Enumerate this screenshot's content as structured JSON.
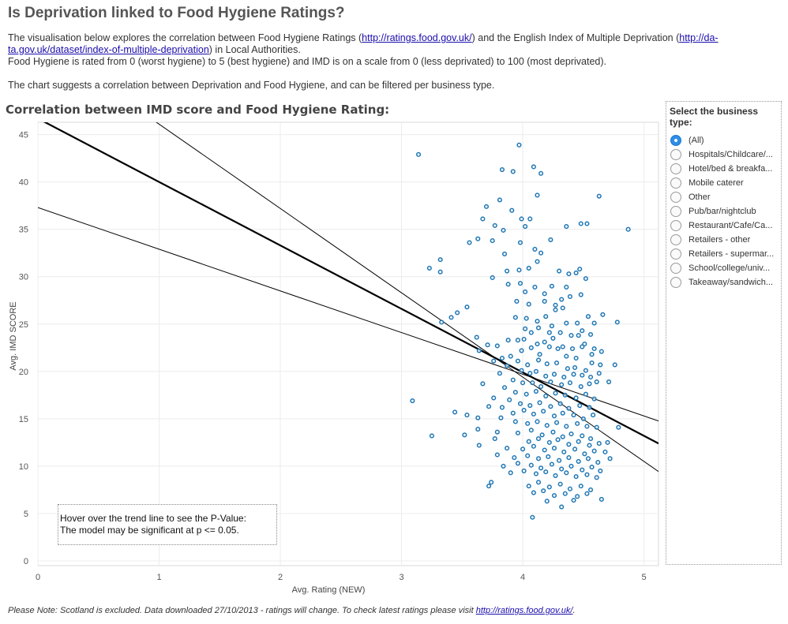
{
  "title": "Is Deprivation linked to Food Hygiene Ratings?",
  "intro": {
    "line1_before": "The visualisation below explores the correlation between Food Hygiene Ratings (",
    "link1": "http://ratings.food.gov.uk/",
    "line1_middle": ") and the English Index of Multiple Deprivation (",
    "link2_part1": "http://da-",
    "link2_part2": "ta.gov.uk/dataset/index-of-multiple-deprivation",
    "line2_after": ") in Local Authorities.",
    "line3": "Food Hygiene is rated from 0 (worst hygiene) to 5 (best hygiene) and IMD is on a scale from 0 (less deprivated) to 100 (most deprivated).",
    "line4": "The chart suggests a correlation between Deprivation and Food Hygiene, and can be filtered per business type."
  },
  "chart_heading": "Correlation between IMD score and Food Hygiene Rating:",
  "filter": {
    "title": "Select the business type:",
    "options": [
      {
        "label": "(All)",
        "selected": true
      },
      {
        "label": "Hospitals/Childcare/...",
        "selected": false
      },
      {
        "label": "Hotel/bed & breakfa...",
        "selected": false
      },
      {
        "label": "Mobile caterer",
        "selected": false
      },
      {
        "label": "Other",
        "selected": false
      },
      {
        "label": "Pub/bar/nightclub",
        "selected": false
      },
      {
        "label": "Restaurant/Cafe/Ca...",
        "selected": false
      },
      {
        "label": "Retailers - other",
        "selected": false
      },
      {
        "label": "Retailers - supermar...",
        "selected": false
      },
      {
        "label": "School/college/univ...",
        "selected": false
      },
      {
        "label": "Takeaway/sandwich...",
        "selected": false
      }
    ]
  },
  "hover_note": {
    "line1": "Hover over the trend line to see the P-Value:",
    "line2": "The model may be significant at p <= 0.05."
  },
  "footnote": {
    "text": "Please Note: Scotland is excluded. Data downloaded 27/10/2013 - ratings will change. To check latest ratings please visit ",
    "link": "http://ratings.food.gov.uk/",
    "end": "."
  },
  "colors": {
    "point": "#1f77b4",
    "trend": "#000000",
    "grid": "#ececec",
    "radio_selected": "#2e8ee8"
  },
  "chart_data": {
    "type": "scatter",
    "xlabel": "Avg. Rating (NEW)",
    "ylabel": "Avg. IMD SCORE",
    "xlim": [
      0,
      5.12
    ],
    "ylim": [
      -0.5,
      46.3
    ],
    "xticks": [
      0,
      1,
      2,
      3,
      4,
      5
    ],
    "yticks": [
      0,
      5,
      10,
      15,
      20,
      25,
      30,
      35,
      40,
      45
    ],
    "grid": true,
    "trend_line": {
      "slope": -6.7,
      "intercept": 46.7
    },
    "confidence_bands": [
      {
        "slope": -4.4,
        "intercept": 37.3
      },
      {
        "slope": -8.9,
        "intercept": 55.0
      }
    ],
    "points": [
      [
        3.14,
        42.9
      ],
      [
        3.97,
        43.9
      ],
      [
        3.83,
        41.3
      ],
      [
        3.92,
        41.1
      ],
      [
        4.09,
        41.6
      ],
      [
        4.15,
        40.9
      ],
      [
        3.81,
        38.1
      ],
      [
        3.7,
        37.4
      ],
      [
        4.12,
        38.6
      ],
      [
        4.63,
        38.5
      ],
      [
        3.91,
        37.0
      ],
      [
        3.67,
        36.1
      ],
      [
        3.99,
        36.1
      ],
      [
        4.06,
        36.1
      ],
      [
        3.77,
        35.4
      ],
      [
        3.84,
        34.9
      ],
      [
        4.02,
        35.3
      ],
      [
        4.48,
        35.6
      ],
      [
        4.53,
        35.6
      ],
      [
        4.36,
        35.3
      ],
      [
        4.87,
        35.0
      ],
      [
        3.56,
        33.6
      ],
      [
        3.63,
        34.0
      ],
      [
        3.75,
        33.8
      ],
      [
        3.98,
        33.6
      ],
      [
        4.23,
        33.9
      ],
      [
        3.85,
        32.4
      ],
      [
        4.1,
        32.9
      ],
      [
        4.15,
        32.5
      ],
      [
        3.32,
        31.8
      ],
      [
        3.23,
        30.9
      ],
      [
        3.32,
        30.5
      ],
      [
        3.87,
        30.6
      ],
      [
        3.97,
        30.7
      ],
      [
        4.05,
        30.9
      ],
      [
        4.12,
        31.6
      ],
      [
        3.75,
        29.9
      ],
      [
        3.88,
        29.2
      ],
      [
        3.98,
        29.3
      ],
      [
        4.3,
        30.6
      ],
      [
        4.38,
        30.3
      ],
      [
        4.44,
        30.4
      ],
      [
        4.47,
        30.8
      ],
      [
        4.52,
        29.8
      ],
      [
        4.02,
        28.4
      ],
      [
        4.1,
        28.9
      ],
      [
        4.18,
        28.2
      ],
      [
        4.24,
        29.0
      ],
      [
        4.32,
        27.6
      ],
      [
        4.36,
        28.9
      ],
      [
        4.39,
        27.9
      ],
      [
        4.48,
        28.1
      ],
      [
        4.05,
        27.1
      ],
      [
        4.18,
        27.4
      ],
      [
        4.27,
        27.0
      ],
      [
        3.54,
        26.8
      ],
      [
        3.95,
        27.4
      ],
      [
        4.33,
        26.7
      ],
      [
        3.41,
        25.7
      ],
      [
        3.46,
        26.2
      ],
      [
        3.94,
        25.7
      ],
      [
        4.03,
        25.6
      ],
      [
        4.12,
        25.3
      ],
      [
        4.19,
        25.8
      ],
      [
        4.24,
        24.8
      ],
      [
        4.27,
        26.5
      ],
      [
        4.36,
        25.1
      ],
      [
        4.45,
        25.1
      ],
      [
        4.54,
        25.8
      ],
      [
        4.59,
        25.1
      ],
      [
        4.66,
        26.0
      ],
      [
        4.78,
        25.2
      ],
      [
        3.33,
        25.2
      ],
      [
        4.02,
        24.5
      ],
      [
        4.07,
        24.1
      ],
      [
        4.13,
        24.6
      ],
      [
        4.22,
        24.1
      ],
      [
        4.31,
        24.1
      ],
      [
        4.4,
        23.8
      ],
      [
        4.49,
        24.3
      ],
      [
        4.56,
        23.9
      ],
      [
        3.62,
        23.6
      ],
      [
        3.71,
        22.8
      ],
      [
        3.88,
        23.3
      ],
      [
        3.96,
        23.3
      ],
      [
        4.01,
        23.4
      ],
      [
        4.12,
        22.9
      ],
      [
        4.18,
        23.1
      ],
      [
        4.25,
        23.5
      ],
      [
        4.33,
        22.6
      ],
      [
        4.41,
        22.4
      ],
      [
        4.46,
        23.8
      ],
      [
        4.51,
        22.9
      ],
      [
        4.59,
        22.4
      ],
      [
        4.65,
        22.1
      ],
      [
        3.64,
        22.2
      ],
      [
        3.79,
        22.7
      ],
      [
        3.99,
        22.2
      ],
      [
        4.07,
        22.5
      ],
      [
        4.14,
        21.8
      ],
      [
        4.22,
        22.6
      ],
      [
        4.29,
        22.4
      ],
      [
        4.36,
        21.6
      ],
      [
        4.44,
        21.4
      ],
      [
        4.49,
        22.6
      ],
      [
        4.57,
        21.8
      ],
      [
        3.83,
        21.4
      ],
      [
        3.9,
        21.6
      ],
      [
        3.96,
        21.1
      ],
      [
        4.04,
        20.7
      ],
      [
        4.13,
        21.2
      ],
      [
        4.2,
        20.8
      ],
      [
        4.28,
        20.9
      ],
      [
        4.37,
        20.3
      ],
      [
        4.43,
        20.4
      ],
      [
        4.52,
        20.1
      ],
      [
        4.57,
        20.9
      ],
      [
        4.64,
        20.7
      ],
      [
        4.76,
        20.7
      ],
      [
        3.76,
        21.1
      ],
      [
        3.87,
        20.6
      ],
      [
        3.99,
        20.1
      ],
      [
        4.06,
        19.8
      ],
      [
        4.11,
        20.0
      ],
      [
        4.19,
        19.5
      ],
      [
        4.26,
        19.7
      ],
      [
        4.34,
        19.4
      ],
      [
        4.42,
        19.7
      ],
      [
        4.49,
        19.6
      ],
      [
        4.56,
        19.4
      ],
      [
        4.63,
        19.8
      ],
      [
        3.81,
        19.8
      ],
      [
        3.92,
        19.1
      ],
      [
        4.0,
        18.8
      ],
      [
        4.08,
        18.8
      ],
      [
        4.15,
        18.4
      ],
      [
        4.23,
        18.9
      ],
      [
        4.32,
        18.6
      ],
      [
        4.39,
        18.8
      ],
      [
        4.48,
        18.4
      ],
      [
        4.55,
        18.7
      ],
      [
        4.61,
        18.9
      ],
      [
        4.71,
        18.9
      ],
      [
        3.67,
        18.7
      ],
      [
        3.85,
        18.3
      ],
      [
        3.94,
        17.8
      ],
      [
        4.03,
        17.6
      ],
      [
        4.11,
        17.9
      ],
      [
        4.19,
        17.4
      ],
      [
        4.27,
        17.7
      ],
      [
        4.35,
        17.5
      ],
      [
        4.44,
        17.2
      ],
      [
        4.52,
        17.6
      ],
      [
        4.59,
        17.1
      ],
      [
        3.09,
        16.9
      ],
      [
        3.76,
        17.2
      ],
      [
        3.89,
        17.0
      ],
      [
        3.98,
        16.6
      ],
      [
        4.06,
        16.4
      ],
      [
        4.14,
        16.7
      ],
      [
        4.23,
        16.3
      ],
      [
        4.31,
        16.6
      ],
      [
        4.38,
        16.1
      ],
      [
        4.47,
        16.4
      ],
      [
        4.55,
        16.2
      ],
      [
        3.72,
        16.3
      ],
      [
        3.83,
        16.2
      ],
      [
        3.92,
        15.6
      ],
      [
        4.01,
        15.9
      ],
      [
        4.09,
        15.5
      ],
      [
        4.17,
        15.8
      ],
      [
        4.26,
        15.3
      ],
      [
        4.33,
        15.6
      ],
      [
        4.42,
        15.4
      ],
      [
        4.5,
        15.0
      ],
      [
        4.58,
        15.4
      ],
      [
        3.44,
        15.7
      ],
      [
        3.54,
        15.4
      ],
      [
        3.63,
        15.1
      ],
      [
        3.82,
        15.1
      ],
      [
        3.94,
        14.7
      ],
      [
        4.04,
        14.5
      ],
      [
        4.12,
        14.7
      ],
      [
        4.2,
        14.3
      ],
      [
        4.28,
        14.6
      ],
      [
        4.36,
        14.2
      ],
      [
        4.45,
        14.5
      ],
      [
        4.53,
        14.2
      ],
      [
        4.61,
        14.1
      ],
      [
        4.79,
        14.1
      ],
      [
        3.63,
        13.9
      ],
      [
        3.79,
        13.6
      ],
      [
        3.96,
        13.5
      ],
      [
        4.07,
        13.8
      ],
      [
        4.16,
        13.3
      ],
      [
        4.25,
        13.6
      ],
      [
        4.33,
        13.1
      ],
      [
        4.4,
        13.4
      ],
      [
        4.49,
        13.2
      ],
      [
        4.56,
        12.9
      ],
      [
        3.25,
        13.2
      ],
      [
        3.52,
        13.3
      ],
      [
        3.77,
        12.9
      ],
      [
        4.05,
        12.6
      ],
      [
        4.13,
        12.9
      ],
      [
        4.22,
        12.5
      ],
      [
        4.29,
        12.8
      ],
      [
        4.38,
        12.3
      ],
      [
        4.46,
        12.6
      ],
      [
        4.55,
        12.2
      ],
      [
        4.63,
        12.4
      ],
      [
        4.7,
        12.5
      ],
      [
        3.64,
        12.2
      ],
      [
        3.87,
        11.9
      ],
      [
        4.0,
        11.8
      ],
      [
        4.09,
        12.1
      ],
      [
        4.18,
        11.7
      ],
      [
        4.26,
        11.9
      ],
      [
        4.34,
        11.5
      ],
      [
        4.43,
        11.8
      ],
      [
        4.51,
        11.3
      ],
      [
        4.59,
        11.6
      ],
      [
        4.68,
        11.5
      ],
      [
        3.79,
        11.2
      ],
      [
        3.93,
        10.9
      ],
      [
        4.04,
        11.1
      ],
      [
        4.13,
        10.8
      ],
      [
        4.21,
        11.0
      ],
      [
        4.3,
        10.6
      ],
      [
        4.38,
        10.9
      ],
      [
        4.46,
        10.5
      ],
      [
        4.54,
        10.8
      ],
      [
        4.62,
        10.4
      ],
      [
        4.72,
        10.8
      ],
      [
        3.84,
        10.0
      ],
      [
        3.96,
        10.3
      ],
      [
        4.07,
        10.1
      ],
      [
        4.15,
        9.8
      ],
      [
        4.24,
        10.2
      ],
      [
        4.32,
        9.7
      ],
      [
        4.4,
        10.0
      ],
      [
        4.49,
        9.6
      ],
      [
        4.57,
        9.9
      ],
      [
        4.64,
        9.5
      ],
      [
        3.9,
        9.3
      ],
      [
        4.01,
        9.5
      ],
      [
        4.11,
        9.2
      ],
      [
        4.19,
        9.4
      ],
      [
        4.27,
        9.0
      ],
      [
        4.36,
        9.3
      ],
      [
        4.44,
        8.9
      ],
      [
        4.53,
        9.1
      ],
      [
        4.61,
        8.8
      ],
      [
        3.74,
        8.3
      ],
      [
        3.72,
        7.9
      ],
      [
        4.05,
        7.9
      ],
      [
        4.13,
        8.3
      ],
      [
        4.22,
        7.8
      ],
      [
        4.31,
        8.1
      ],
      [
        4.39,
        7.6
      ],
      [
        4.48,
        7.9
      ],
      [
        4.56,
        7.5
      ],
      [
        4.09,
        7.2
      ],
      [
        4.17,
        7.4
      ],
      [
        4.26,
        6.9
      ],
      [
        4.35,
        7.1
      ],
      [
        4.45,
        6.8
      ],
      [
        4.53,
        7.1
      ],
      [
        4.2,
        6.3
      ],
      [
        4.32,
        5.7
      ],
      [
        4.42,
        6.4
      ],
      [
        4.08,
        4.6
      ],
      [
        4.65,
        6.5
      ]
    ]
  }
}
